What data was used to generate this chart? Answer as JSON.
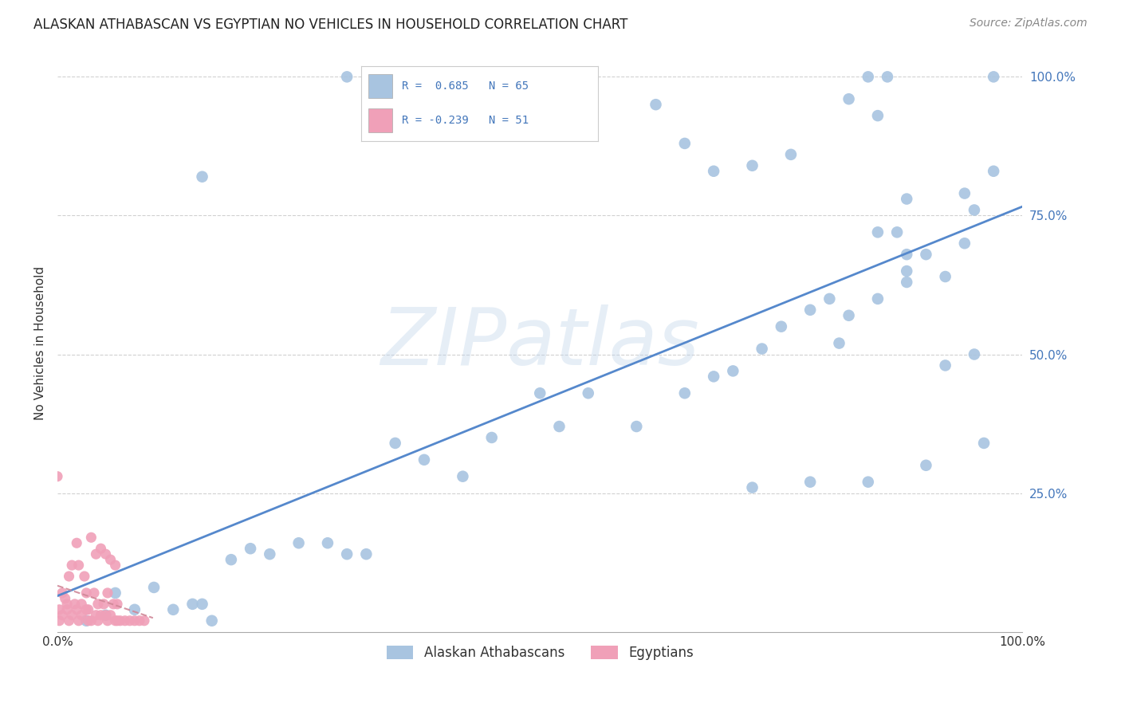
{
  "title": "ALASKAN ATHABASCAN VS EGYPTIAN NO VEHICLES IN HOUSEHOLD CORRELATION CHART",
  "source": "Source: ZipAtlas.com",
  "ylabel": "No Vehicles in Household",
  "legend_label1": "Alaskan Athabascans",
  "legend_label2": "Egyptians",
  "r1": 0.685,
  "n1": 65,
  "r2": -0.239,
  "n2": 51,
  "color_blue": "#A8C4E0",
  "color_pink": "#F0A0B8",
  "color_line_blue": "#5588CC",
  "color_line_pink": "#D08898",
  "background_color": "#FFFFFF",
  "watermark": "ZIPatlas",
  "blue_x": [
    0.3,
    0.15,
    0.62,
    0.65,
    0.68,
    0.72,
    0.76,
    0.84,
    0.86,
    0.82,
    0.88,
    0.94,
    0.95,
    0.97,
    0.85,
    0.87,
    0.88,
    0.9,
    0.92,
    0.94,
    0.8,
    0.82,
    0.85,
    0.88,
    0.75,
    0.78,
    0.81,
    0.7,
    0.73,
    0.65,
    0.68,
    0.6,
    0.55,
    0.5,
    0.52,
    0.45,
    0.42,
    0.38,
    0.35,
    0.25,
    0.28,
    0.3,
    0.32,
    0.2,
    0.22,
    0.18,
    0.15,
    0.12,
    0.08,
    0.05,
    0.03,
    0.06,
    0.1,
    0.14,
    0.16,
    0.72,
    0.78,
    0.84,
    0.9,
    0.96,
    0.95,
    0.92,
    0.88,
    0.85,
    0.97
  ],
  "blue_y": [
    1.0,
    0.82,
    0.95,
    0.88,
    0.83,
    0.84,
    0.86,
    1.0,
    1.0,
    0.96,
    0.78,
    0.79,
    0.76,
    0.83,
    0.72,
    0.72,
    0.65,
    0.68,
    0.64,
    0.7,
    0.6,
    0.57,
    0.6,
    0.63,
    0.55,
    0.58,
    0.52,
    0.47,
    0.51,
    0.43,
    0.46,
    0.37,
    0.43,
    0.43,
    0.37,
    0.35,
    0.28,
    0.31,
    0.34,
    0.16,
    0.16,
    0.14,
    0.14,
    0.15,
    0.14,
    0.13,
    0.05,
    0.04,
    0.04,
    0.03,
    0.02,
    0.07,
    0.08,
    0.05,
    0.02,
    0.26,
    0.27,
    0.27,
    0.3,
    0.34,
    0.5,
    0.48,
    0.68,
    0.93,
    1.0
  ],
  "pink_x": [
    0.0,
    0.002,
    0.005,
    0.008,
    0.01,
    0.012,
    0.015,
    0.018,
    0.02,
    0.022,
    0.025,
    0.028,
    0.03,
    0.032,
    0.035,
    0.038,
    0.04,
    0.042,
    0.045,
    0.048,
    0.05,
    0.052,
    0.055,
    0.058,
    0.06,
    0.062,
    0.01,
    0.02,
    0.03,
    0.04,
    0.05,
    0.06,
    0.07,
    0.08,
    0.09,
    0.005,
    0.015,
    0.025,
    0.035,
    0.045,
    0.055,
    0.065,
    0.075,
    0.085,
    0.002,
    0.012,
    0.022,
    0.032,
    0.042,
    0.052,
    0.062
  ],
  "pink_y": [
    0.28,
    0.04,
    0.07,
    0.06,
    0.05,
    0.1,
    0.12,
    0.05,
    0.16,
    0.12,
    0.05,
    0.1,
    0.07,
    0.04,
    0.17,
    0.07,
    0.14,
    0.05,
    0.15,
    0.05,
    0.14,
    0.07,
    0.13,
    0.05,
    0.12,
    0.05,
    0.04,
    0.04,
    0.04,
    0.03,
    0.03,
    0.02,
    0.02,
    0.02,
    0.02,
    0.03,
    0.03,
    0.03,
    0.02,
    0.03,
    0.03,
    0.02,
    0.02,
    0.02,
    0.02,
    0.02,
    0.02,
    0.02,
    0.02,
    0.02,
    0.02
  ]
}
